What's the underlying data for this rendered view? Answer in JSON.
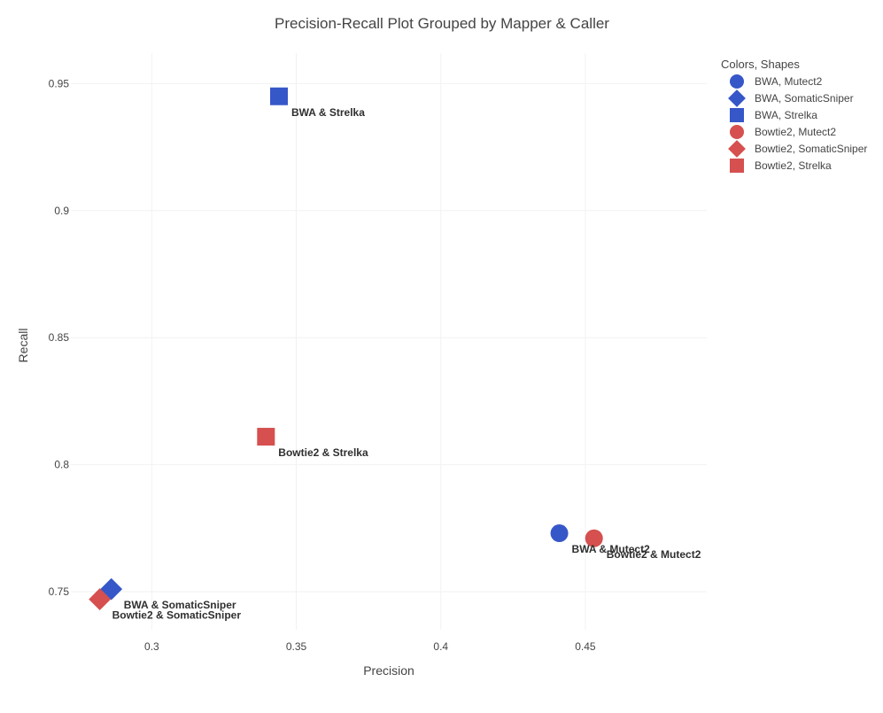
{
  "chart_data": {
    "type": "scatter",
    "title": "Precision-Recall Plot Grouped by Mapper & Caller",
    "xlabel": "Precision",
    "ylabel": "Recall",
    "xlim": [
      0.272,
      0.492
    ],
    "ylim": [
      0.735,
      0.962
    ],
    "grid": true,
    "x_ticks": [
      0.3,
      0.35,
      0.4,
      0.45
    ],
    "x_tick_labels": [
      "0.3",
      "0.35",
      "0.4",
      "0.45"
    ],
    "y_ticks": [
      0.75,
      0.8,
      0.85,
      0.9,
      0.95
    ],
    "y_tick_labels": [
      "0.75",
      "0.8",
      "0.85",
      "0.9",
      "0.95"
    ],
    "legend": {
      "title": "Colors, Shapes",
      "placement": "top-right"
    },
    "series": [
      {
        "name": "BWA, Mutect2",
        "color": "#3657c8",
        "shape": "circle",
        "x": [
          0.441
        ],
        "y": [
          0.773
        ],
        "annotation": "BWA & Mutect2"
      },
      {
        "name": "BWA, SomaticSniper",
        "color": "#3657c8",
        "shape": "diamond",
        "x": [
          0.286
        ],
        "y": [
          0.751
        ],
        "annotation": "BWA & SomaticSniper"
      },
      {
        "name": "BWA, Strelka",
        "color": "#3657c8",
        "shape": "square",
        "x": [
          0.344
        ],
        "y": [
          0.945
        ],
        "annotation": "BWA & Strelka"
      },
      {
        "name": "Bowtie2, Mutect2",
        "color": "#d5504f",
        "shape": "circle",
        "x": [
          0.453
        ],
        "y": [
          0.771
        ],
        "annotation": "Bowtie2 & Mutect2"
      },
      {
        "name": "Bowtie2, SomaticSniper",
        "color": "#d5504f",
        "shape": "diamond",
        "x": [
          0.282
        ],
        "y": [
          0.747
        ],
        "annotation": "Bowtie2 & SomaticSniper"
      },
      {
        "name": "Bowtie2, Strelka",
        "color": "#d5504f",
        "shape": "square",
        "x": [
          0.3395
        ],
        "y": [
          0.811
        ],
        "annotation": "Bowtie2 & Strelka"
      }
    ]
  }
}
